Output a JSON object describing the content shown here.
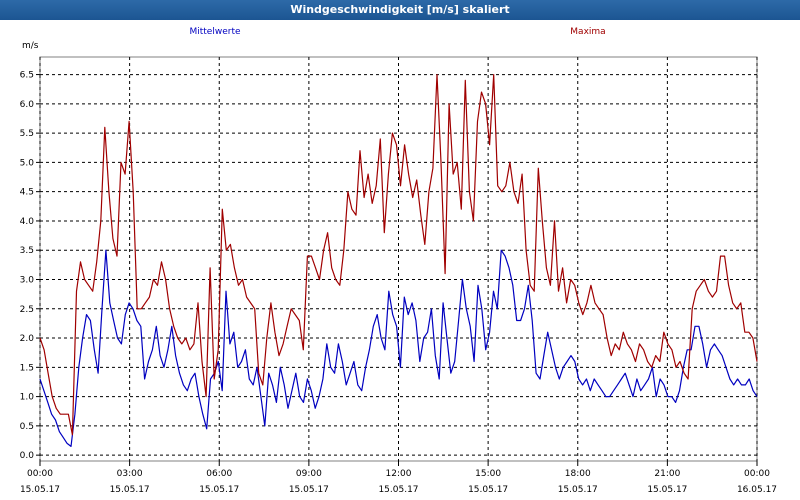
{
  "window": {
    "title": "Windgeschwindigkeit [m/s] skaliert"
  },
  "colors": {
    "mean": "#0000c0",
    "max": "#a00000",
    "grid": "#000000",
    "background": "#ffffff",
    "titlebar": "#1f5a97"
  },
  "chart_data": {
    "type": "line",
    "ylabel": "m/s",
    "ylim": [
      -0.1,
      6.8
    ],
    "xlim": [
      0,
      24
    ],
    "yticks": [
      "0.0",
      "0.5",
      "1.0",
      "1.5",
      "2.0",
      "2.5",
      "3.0",
      "3.5",
      "4.0",
      "4.5",
      "5.0",
      "5.5",
      "6.0",
      "6.5"
    ],
    "xticks": [
      {
        "time": "00:00",
        "date": "15.05.17"
      },
      {
        "time": "03:00",
        "date": "15.05.17"
      },
      {
        "time": "06:00",
        "date": "15.05.17"
      },
      {
        "time": "09:00",
        "date": "15.05.17"
      },
      {
        "time": "12:00",
        "date": "15.05.17"
      },
      {
        "time": "15:00",
        "date": "15.05.17"
      },
      {
        "time": "18:00",
        "date": "15.05.17"
      },
      {
        "time": "21:00",
        "date": "15.05.17"
      },
      {
        "time": "00:00",
        "date": "16.05.17"
      }
    ],
    "grid": true,
    "series": [
      {
        "name": "Mittelwerte",
        "color": "#0000c0",
        "legend": "top-left",
        "y": [
          1.3,
          1.1,
          0.9,
          0.7,
          0.6,
          0.4,
          0.3,
          0.2,
          0.15,
          0.7,
          1.5,
          2.0,
          2.4,
          2.3,
          1.8,
          1.4,
          2.5,
          3.5,
          2.6,
          2.3,
          2.0,
          1.9,
          2.4,
          2.6,
          2.5,
          2.3,
          2.2,
          1.3,
          1.6,
          1.8,
          2.2,
          1.7,
          1.5,
          1.8,
          2.2,
          1.7,
          1.4,
          1.2,
          1.1,
          1.3,
          1.4,
          1.0,
          0.7,
          0.45,
          1.3,
          1.4,
          1.6,
          1.1,
          2.8,
          1.9,
          2.1,
          1.5,
          1.6,
          1.8,
          1.3,
          1.2,
          1.5,
          1.0,
          0.5,
          1.4,
          1.2,
          0.9,
          1.5,
          1.2,
          0.8,
          1.1,
          1.4,
          1.0,
          0.9,
          1.3,
          1.1,
          0.8,
          1.0,
          1.3,
          1.9,
          1.5,
          1.4,
          1.9,
          1.6,
          1.2,
          1.4,
          1.6,
          1.2,
          1.1,
          1.5,
          1.8,
          2.2,
          2.4,
          2.0,
          1.8,
          2.8,
          2.4,
          2.2,
          1.5,
          2.7,
          2.4,
          2.6,
          2.3,
          1.6,
          2.0,
          2.1,
          2.5,
          1.7,
          1.3,
          2.6,
          2.0,
          1.4,
          1.6,
          2.3,
          3.0,
          2.5,
          2.2,
          1.6,
          2.9,
          2.5,
          1.8,
          2.1,
          2.8,
          2.5,
          3.5,
          3.4,
          3.2,
          2.9,
          2.3,
          2.3,
          2.5,
          2.9,
          2.3,
          1.4,
          1.3,
          1.7,
          2.1,
          1.8,
          1.5,
          1.3,
          1.5,
          1.6,
          1.7,
          1.6,
          1.3,
          1.2,
          1.3,
          1.1,
          1.3,
          1.2,
          1.1,
          1.0,
          1.0,
          1.1,
          1.2,
          1.3,
          1.4,
          1.2,
          1.0,
          1.3,
          1.1,
          1.2,
          1.3,
          1.5,
          1.0,
          1.3,
          1.2,
          1.0,
          1.0,
          0.9,
          1.1,
          1.5,
          1.8,
          1.8,
          2.2,
          2.2,
          1.9,
          1.5,
          1.8,
          1.9,
          1.8,
          1.7,
          1.5,
          1.3,
          1.2,
          1.3,
          1.2,
          1.2,
          1.3,
          1.1,
          1.0
        ]
      },
      {
        "name": "Maxima",
        "color": "#a00000",
        "legend": "top-right",
        "y": [
          2.0,
          1.8,
          1.4,
          1.0,
          0.8,
          0.7,
          0.7,
          0.7,
          0.35,
          2.8,
          3.3,
          3.0,
          2.9,
          2.8,
          3.3,
          4.0,
          5.6,
          4.5,
          3.7,
          3.4,
          5.0,
          4.8,
          5.7,
          4.5,
          2.5,
          2.5,
          2.6,
          2.7,
          3.0,
          2.9,
          3.3,
          3.0,
          2.5,
          2.2,
          2.0,
          1.9,
          2.0,
          1.8,
          1.9,
          2.6,
          1.6,
          1.0,
          3.2,
          1.3,
          1.8,
          4.2,
          3.5,
          3.6,
          3.2,
          2.9,
          3.0,
          2.7,
          2.6,
          2.5,
          1.4,
          1.2,
          2.0,
          2.6,
          2.1,
          1.7,
          1.9,
          2.2,
          2.5,
          2.4,
          2.3,
          1.8,
          3.4,
          3.4,
          3.2,
          3.0,
          3.5,
          3.8,
          3.2,
          3.0,
          2.9,
          3.5,
          4.5,
          4.2,
          4.1,
          5.2,
          4.4,
          4.8,
          4.3,
          4.6,
          5.4,
          3.8,
          4.8,
          5.5,
          5.3,
          4.6,
          5.3,
          4.8,
          4.4,
          4.7,
          4.1,
          3.6,
          4.5,
          4.9,
          6.5,
          5.0,
          3.1,
          6.0,
          4.8,
          5.0,
          4.2,
          6.4,
          4.5,
          4.0,
          5.7,
          6.2,
          6.0,
          5.3,
          6.5,
          4.6,
          4.5,
          4.6,
          5.0,
          4.5,
          4.3,
          4.8,
          3.5,
          2.9,
          2.8,
          4.9,
          4.0,
          3.2,
          2.9,
          4.0,
          2.8,
          3.2,
          2.6,
          3.0,
          2.9,
          2.6,
          2.4,
          2.6,
          2.9,
          2.6,
          2.5,
          2.4,
          2.0,
          1.7,
          1.9,
          1.8,
          2.1,
          1.9,
          1.8,
          1.6,
          1.9,
          1.8,
          1.6,
          1.5,
          1.7,
          1.6,
          2.1,
          1.9,
          1.8,
          1.5,
          1.6,
          1.4,
          1.3,
          2.5,
          2.8,
          2.9,
          3.0,
          2.8,
          2.7,
          2.8,
          3.4,
          3.4,
          2.9,
          2.6,
          2.5,
          2.6,
          2.1,
          2.1,
          2.0,
          1.6
        ]
      }
    ]
  }
}
